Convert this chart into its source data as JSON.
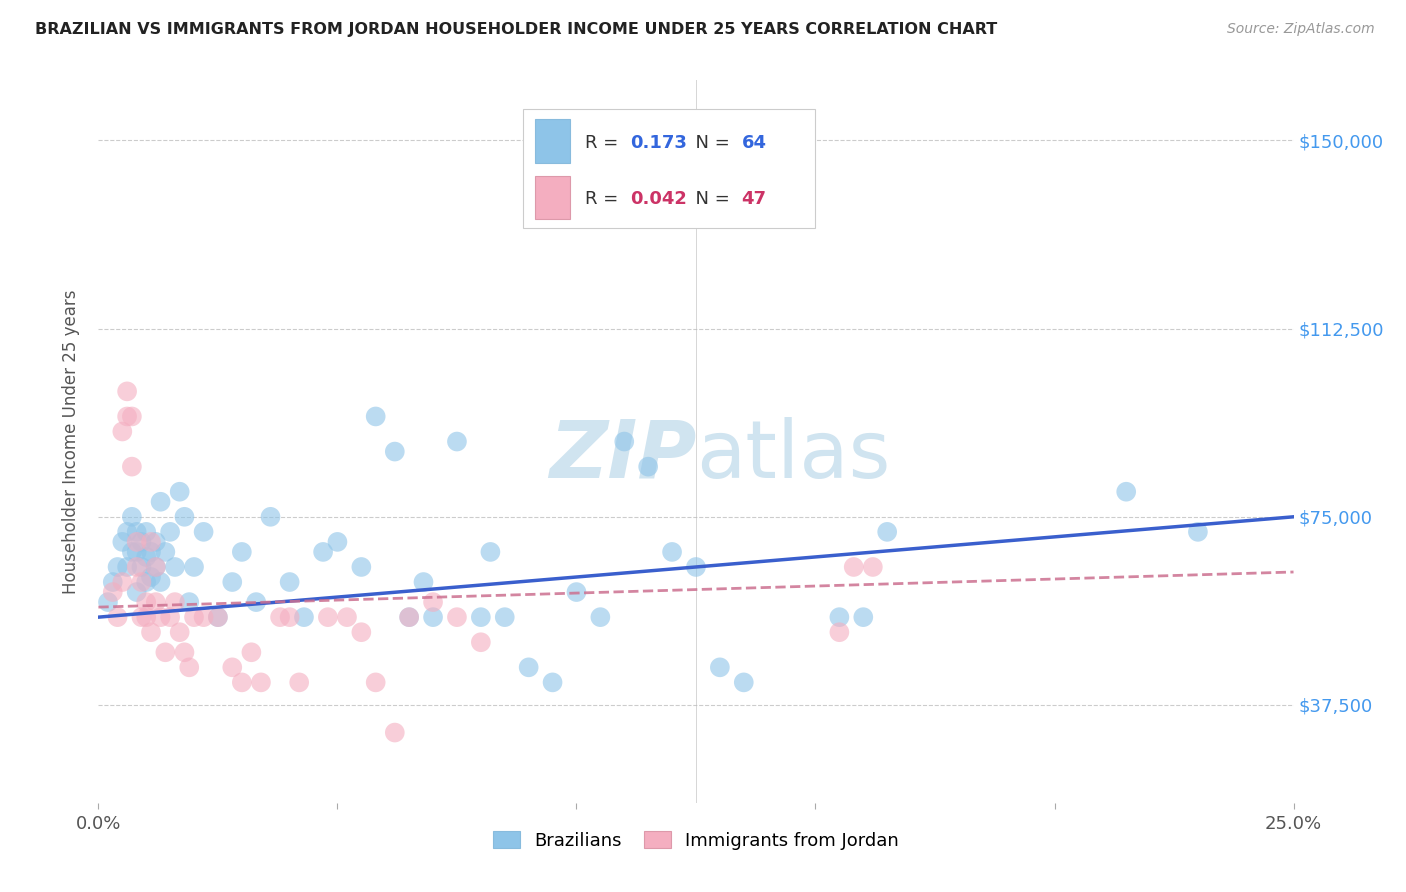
{
  "title": "BRAZILIAN VS IMMIGRANTS FROM JORDAN HOUSEHOLDER INCOME UNDER 25 YEARS CORRELATION CHART",
  "source_text": "Source: ZipAtlas.com",
  "ylabel": "Householder Income Under 25 years",
  "xlim": [
    0.0,
    0.25
  ],
  "ylim": [
    18000,
    162000
  ],
  "ytick_positions": [
    37500,
    75000,
    112500,
    150000
  ],
  "ytick_labels": [
    "$37,500",
    "$75,000",
    "$112,500",
    "$150,000"
  ],
  "background_color": "#ffffff",
  "grid_color": "#cccccc",
  "blue_color": "#8ec4e8",
  "pink_color": "#f4aec0",
  "trend_blue": "#3a5fcd",
  "trend_pink": "#cc7090",
  "watermark_color": "#d0e4f0",
  "legend_R_blue": "0.173",
  "legend_N_blue": "64",
  "legend_R_pink": "0.042",
  "legend_N_pink": "47",
  "blue_x": [
    0.002,
    0.003,
    0.004,
    0.005,
    0.006,
    0.006,
    0.007,
    0.007,
    0.008,
    0.008,
    0.008,
    0.009,
    0.009,
    0.01,
    0.01,
    0.01,
    0.011,
    0.011,
    0.012,
    0.012,
    0.013,
    0.013,
    0.014,
    0.015,
    0.016,
    0.017,
    0.018,
    0.019,
    0.02,
    0.022,
    0.025,
    0.028,
    0.03,
    0.033,
    0.036,
    0.04,
    0.043,
    0.047,
    0.05,
    0.055,
    0.058,
    0.062,
    0.065,
    0.068,
    0.07,
    0.075,
    0.08,
    0.082,
    0.085,
    0.09,
    0.095,
    0.1,
    0.105,
    0.11,
    0.115,
    0.12,
    0.125,
    0.13,
    0.135,
    0.155,
    0.16,
    0.165,
    0.215,
    0.23
  ],
  "blue_y": [
    58000,
    62000,
    65000,
    70000,
    72000,
    65000,
    68000,
    75000,
    60000,
    68000,
    72000,
    65000,
    70000,
    62000,
    67000,
    72000,
    68000,
    63000,
    65000,
    70000,
    78000,
    62000,
    68000,
    72000,
    65000,
    80000,
    75000,
    58000,
    65000,
    72000,
    55000,
    62000,
    68000,
    58000,
    75000,
    62000,
    55000,
    68000,
    70000,
    65000,
    95000,
    88000,
    55000,
    62000,
    55000,
    90000,
    55000,
    68000,
    55000,
    45000,
    42000,
    60000,
    55000,
    90000,
    85000,
    68000,
    65000,
    45000,
    42000,
    55000,
    55000,
    72000,
    80000,
    72000
  ],
  "pink_x": [
    0.003,
    0.004,
    0.005,
    0.005,
    0.006,
    0.006,
    0.007,
    0.007,
    0.008,
    0.008,
    0.009,
    0.009,
    0.01,
    0.01,
    0.011,
    0.011,
    0.012,
    0.012,
    0.013,
    0.014,
    0.015,
    0.016,
    0.017,
    0.018,
    0.019,
    0.02,
    0.022,
    0.025,
    0.028,
    0.03,
    0.032,
    0.034,
    0.038,
    0.04,
    0.042,
    0.048,
    0.052,
    0.055,
    0.058,
    0.062,
    0.065,
    0.07,
    0.075,
    0.08,
    0.155,
    0.158,
    0.162
  ],
  "pink_y": [
    60000,
    55000,
    92000,
    62000,
    95000,
    100000,
    95000,
    85000,
    70000,
    65000,
    62000,
    55000,
    58000,
    55000,
    52000,
    70000,
    65000,
    58000,
    55000,
    48000,
    55000,
    58000,
    52000,
    48000,
    45000,
    55000,
    55000,
    55000,
    45000,
    42000,
    48000,
    42000,
    55000,
    55000,
    42000,
    55000,
    55000,
    52000,
    42000,
    32000,
    55000,
    58000,
    55000,
    50000,
    52000,
    65000,
    65000
  ]
}
